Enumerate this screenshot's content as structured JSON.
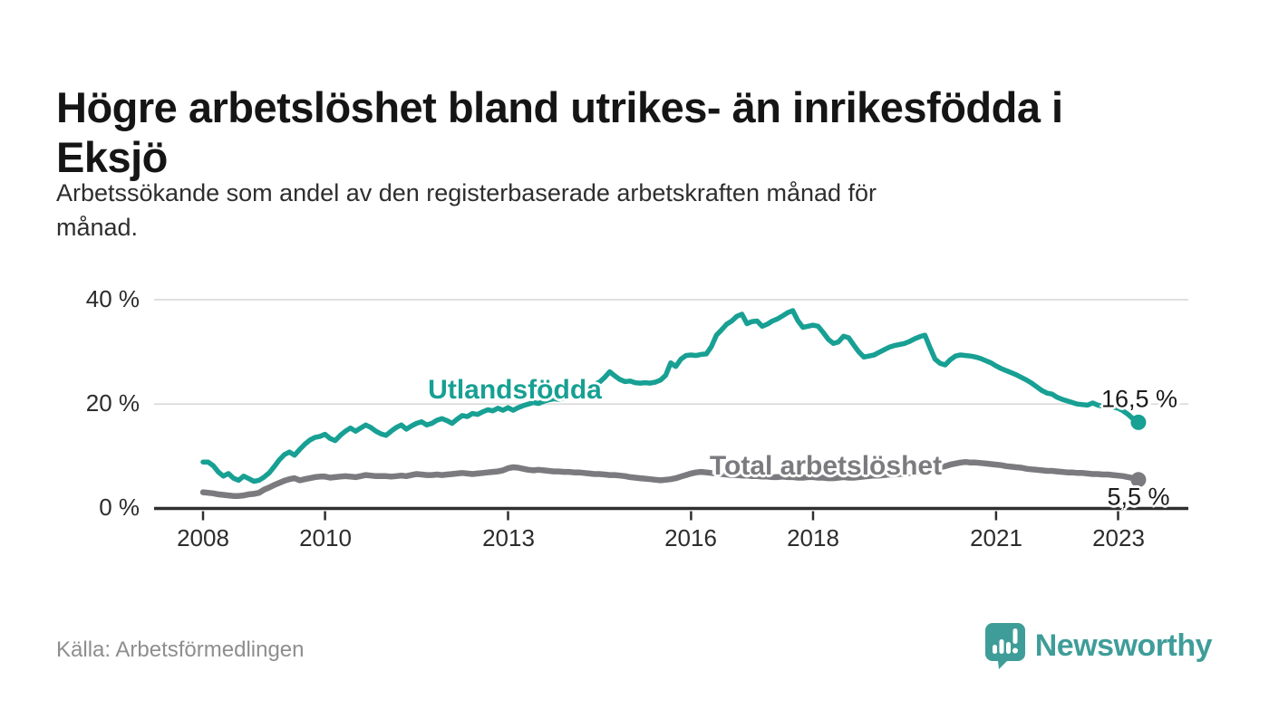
{
  "header": {
    "title_line1": "Högre arbetslöshet bland utrikes- än inrikesfödda i",
    "title_line2": "Eksjö",
    "subtitle_line1": "Arbetssökande som andel av den registerbaserade arbetskraften månad för",
    "subtitle_line2": "månad."
  },
  "footer": {
    "source": "Källa: Arbetsförmedlingen",
    "brand": "Newsworthy",
    "brand_icon": "speech-bubble-bar-chart-exclamation"
  },
  "colors": {
    "series_foreign": "#17a093",
    "series_total": "#7b7b7f",
    "axis": "#2e2e2e",
    "grid": "#d9d9d9",
    "text": "#151515",
    "muted": "#8e8e8e",
    "brand": "#3f9d99"
  },
  "chart_data": {
    "type": "line",
    "title": "Högre arbetslöshet bland utrikes- än inrikesfödda i Eksjö",
    "subtitle": "Arbetssökande som andel av den registerbaserade arbetskraften månad för månad.",
    "unit": "%",
    "x_start_year": 2008,
    "points_per_month": 1,
    "x_end": "maj 2023",
    "xlim": [
      2007.15,
      2024.15
    ],
    "ylim": [
      0,
      42
    ],
    "grid": "horizontal",
    "legend_position": "inline-labels",
    "x_ticks": [
      {
        "year": 2008,
        "label": "2008"
      },
      {
        "year": 2010,
        "label": "2010"
      },
      {
        "year": 2013,
        "label": "2013"
      },
      {
        "year": 2016,
        "label": "2016"
      },
      {
        "year": 2018,
        "label": "2018"
      },
      {
        "year": 2021,
        "label": "2021"
      },
      {
        "year": 2023,
        "label": "2023"
      }
    ],
    "y_ticks": [
      {
        "value": 0,
        "label": "0 %"
      },
      {
        "value": 20,
        "label": "20 %"
      },
      {
        "value": 40,
        "label": "40 %"
      }
    ],
    "series": [
      {
        "name": "Utlandsfödda",
        "color": "#17a093",
        "end_label": "16,5 %",
        "end_value": 16.5,
        "values": [
          8.9,
          8.9,
          8.2,
          7.0,
          6.2,
          6.7,
          5.8,
          5.4,
          6.2,
          5.7,
          5.2,
          5.4,
          6.0,
          6.8,
          8.0,
          9.3,
          10.3,
          10.8,
          10.2,
          11.3,
          12.3,
          13.1,
          13.6,
          13.8,
          14.2,
          13.4,
          13.0,
          14.0,
          14.8,
          15.4,
          14.8,
          15.4,
          16.0,
          15.5,
          14.8,
          14.3,
          14.0,
          14.8,
          15.5,
          16.0,
          15.2,
          15.8,
          16.3,
          16.6,
          16.0,
          16.3,
          16.9,
          17.2,
          16.8,
          16.3,
          17.1,
          17.8,
          17.6,
          18.2,
          18.0,
          18.5,
          18.9,
          18.7,
          19.2,
          18.8,
          19.3,
          18.8,
          19.3,
          19.7,
          20.0,
          20.3,
          20.1,
          20.5,
          20.8,
          21.0,
          20.9,
          21.2,
          21.5,
          21.9,
          22.4,
          22.9,
          23.4,
          23.8,
          24.2,
          25.1,
          26.2,
          25.4,
          24.7,
          24.3,
          24.4,
          24.1,
          24.0,
          24.1,
          24.0,
          24.2,
          24.6,
          25.5,
          27.9,
          27.2,
          28.6,
          29.3,
          29.4,
          29.3,
          29.5,
          29.6,
          31.0,
          33.2,
          34.2,
          35.3,
          35.9,
          36.8,
          37.2,
          35.4,
          35.8,
          35.9,
          34.9,
          35.3,
          35.9,
          36.3,
          36.9,
          37.5,
          37.9,
          36.0,
          34.7,
          34.9,
          35.1,
          34.9,
          33.7,
          32.4,
          31.6,
          31.9,
          33.0,
          32.7,
          31.3,
          30.0,
          29.0,
          29.2,
          29.4,
          29.9,
          30.4,
          30.9,
          31.2,
          31.4,
          31.6,
          32.0,
          32.5,
          32.9,
          33.2,
          30.8,
          28.6,
          27.8,
          27.5,
          28.5,
          29.2,
          29.4,
          29.3,
          29.2,
          29.0,
          28.7,
          28.3,
          27.9,
          27.3,
          26.8,
          26.4,
          26.0,
          25.6,
          25.1,
          24.6,
          24.0,
          23.3,
          22.6,
          22.1,
          21.9,
          21.3,
          20.9,
          20.6,
          20.3,
          20.0,
          19.9,
          19.8,
          20.2,
          19.8,
          19.6,
          19.5,
          19.4,
          19.2,
          18.7,
          18.0,
          17.1,
          16.5
        ]
      },
      {
        "name": "Total arbetslöshet",
        "color": "#7b7b7f",
        "end_label": "5,5 %",
        "end_value": 5.5,
        "values": [
          3.1,
          3.0,
          2.9,
          2.7,
          2.6,
          2.5,
          2.4,
          2.4,
          2.5,
          2.7,
          2.8,
          3.0,
          3.6,
          4.0,
          4.5,
          4.9,
          5.3,
          5.6,
          5.8,
          5.4,
          5.6,
          5.8,
          6.0,
          6.1,
          6.1,
          5.9,
          6.0,
          6.1,
          6.2,
          6.1,
          6.0,
          6.2,
          6.4,
          6.3,
          6.2,
          6.2,
          6.2,
          6.1,
          6.2,
          6.3,
          6.2,
          6.4,
          6.6,
          6.5,
          6.4,
          6.4,
          6.5,
          6.4,
          6.5,
          6.6,
          6.7,
          6.8,
          6.7,
          6.6,
          6.7,
          6.8,
          6.9,
          7.0,
          7.1,
          7.3,
          7.7,
          7.9,
          7.8,
          7.6,
          7.4,
          7.3,
          7.4,
          7.3,
          7.2,
          7.1,
          7.1,
          7.0,
          7.0,
          6.9,
          6.9,
          6.8,
          6.7,
          6.6,
          6.6,
          6.5,
          6.4,
          6.4,
          6.3,
          6.2,
          6.0,
          5.9,
          5.8,
          5.7,
          5.6,
          5.5,
          5.4,
          5.5,
          5.6,
          5.8,
          6.1,
          6.4,
          6.7,
          6.9,
          7.0,
          6.9,
          6.8,
          6.7,
          6.6,
          6.5,
          6.4,
          6.4,
          6.3,
          6.3,
          6.2,
          6.2,
          6.1,
          6.1,
          6.0,
          6.0,
          6.1,
          6.0,
          6.0,
          5.9,
          5.9,
          6.0,
          6.0,
          5.9,
          5.9,
          5.8,
          5.8,
          5.9,
          6.0,
          5.9,
          5.9,
          6.0,
          6.1,
          6.2,
          6.3,
          6.3,
          6.4,
          6.5,
          6.5,
          6.6,
          6.7,
          6.8,
          6.9,
          7.0,
          7.2,
          7.4,
          7.7,
          7.9,
          8.1,
          8.4,
          8.6,
          8.8,
          8.9,
          8.8,
          8.8,
          8.7,
          8.6,
          8.5,
          8.4,
          8.3,
          8.1,
          8.0,
          7.9,
          7.8,
          7.6,
          7.5,
          7.4,
          7.3,
          7.2,
          7.2,
          7.1,
          7.0,
          6.9,
          6.9,
          6.8,
          6.8,
          6.7,
          6.6,
          6.6,
          6.5,
          6.5,
          6.4,
          6.3,
          6.2,
          6.0,
          5.8,
          5.5
        ]
      }
    ]
  }
}
